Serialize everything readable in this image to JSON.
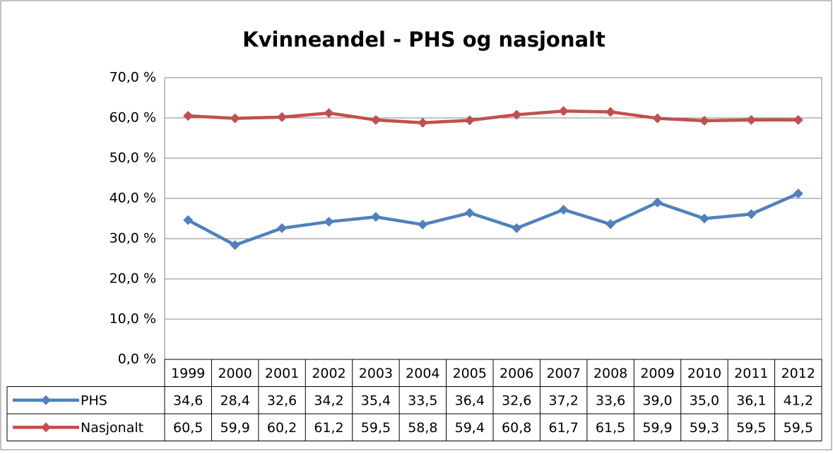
{
  "chart_data": {
    "type": "line",
    "title": "Kvinneandel - PHS og nasjonalt",
    "categories": [
      "1999",
      "2000",
      "2001",
      "2002",
      "2003",
      "2004",
      "2005",
      "2006",
      "2007",
      "2008",
      "2009",
      "2010",
      "2011",
      "2012"
    ],
    "series": [
      {
        "name": "PHS",
        "color": "#4f81bd",
        "values": [
          34.6,
          28.4,
          32.6,
          34.2,
          35.4,
          33.5,
          36.4,
          32.6,
          37.2,
          33.6,
          39.0,
          35.0,
          36.1,
          41.2
        ],
        "value_labels": [
          "34,6",
          "28,4",
          "32,6",
          "34,2",
          "35,4",
          "33,5",
          "36,4",
          "32,6",
          "37,2",
          "33,6",
          "39,0",
          "35,0",
          "36,1",
          "41,2"
        ]
      },
      {
        "name": "Nasjonalt",
        "color": "#c0504d",
        "values": [
          60.5,
          59.9,
          60.2,
          61.2,
          59.5,
          58.8,
          59.4,
          60.8,
          61.7,
          61.5,
          59.9,
          59.3,
          59.5,
          59.5
        ],
        "value_labels": [
          "60,5",
          "59,9",
          "60,2",
          "61,2",
          "59,5",
          "58,8",
          "59,4",
          "60,8",
          "61,7",
          "61,5",
          "59,9",
          "59,3",
          "59,5",
          "59,5"
        ]
      }
    ],
    "ylim": [
      0,
      70
    ],
    "yticks": [
      {
        "value": 0,
        "label": "0,0 %"
      },
      {
        "value": 10,
        "label": "10,0 %"
      },
      {
        "value": 20,
        "label": "20,0 %"
      },
      {
        "value": 30,
        "label": "30,0 %"
      },
      {
        "value": 40,
        "label": "40,0 %"
      },
      {
        "value": 50,
        "label": "50,0 %"
      },
      {
        "value": 60,
        "label": "60,0 %"
      },
      {
        "value": 70,
        "label": "70,0 %"
      }
    ],
    "grid": true
  }
}
